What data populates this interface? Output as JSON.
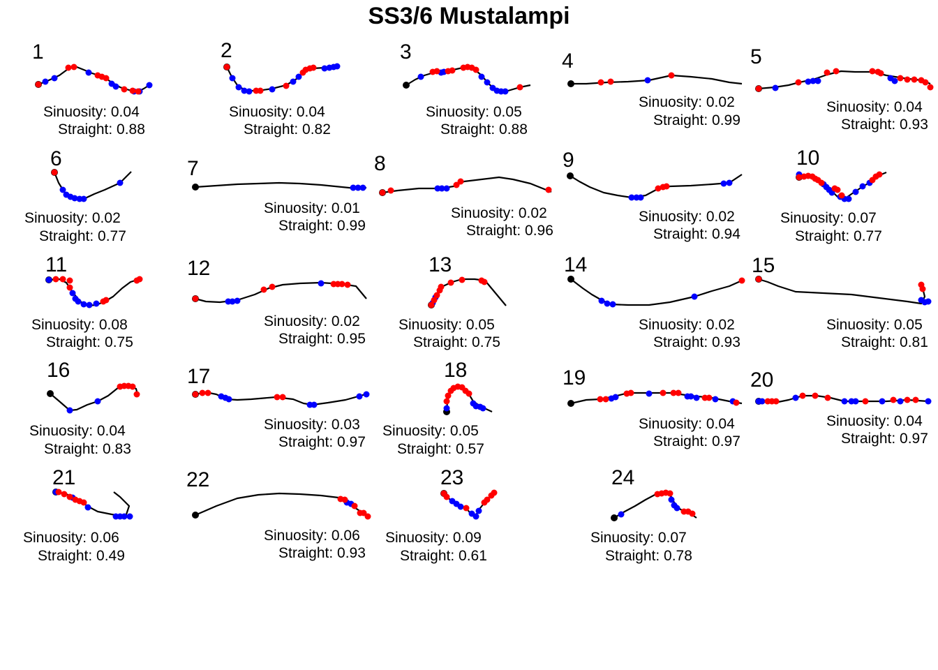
{
  "chart_data": {
    "type": "line",
    "title": "SS3/6 Mustalampi",
    "legend": "none",
    "colors": {
      "line": "#000000",
      "start": "#000000",
      "red_points": "#ff0000",
      "blue_points": "#0000ff"
    },
    "sinuosity_label": "Sinuosity:",
    "straight_label": "Straight:",
    "panels": [
      {
        "id": "1",
        "sinuosity": "0.04",
        "straightness": "0.88"
      },
      {
        "id": "2",
        "sinuosity": "0.04",
        "straightness": "0.82"
      },
      {
        "id": "3",
        "sinuosity": "0.05",
        "straightness": "0.88"
      },
      {
        "id": "4",
        "sinuosity": "0.02",
        "straightness": "0.99"
      },
      {
        "id": "5",
        "sinuosity": "0.04",
        "straightness": "0.93"
      },
      {
        "id": "6",
        "sinuosity": "0.02",
        "straightness": "0.77"
      },
      {
        "id": "7",
        "sinuosity": "0.01",
        "straightness": "0.99"
      },
      {
        "id": "8",
        "sinuosity": "0.02",
        "straightness": "0.96"
      },
      {
        "id": "9",
        "sinuosity": "0.02",
        "straightness": "0.94"
      },
      {
        "id": "10",
        "sinuosity": "0.07",
        "straightness": "0.77"
      },
      {
        "id": "11",
        "sinuosity": "0.08",
        "straightness": "0.75"
      },
      {
        "id": "12",
        "sinuosity": "0.02",
        "straightness": "0.95"
      },
      {
        "id": "13",
        "sinuosity": "0.05",
        "straightness": "0.75"
      },
      {
        "id": "14",
        "sinuosity": "0.02",
        "straightness": "0.93"
      },
      {
        "id": "15",
        "sinuosity": "0.05",
        "straightness": "0.81"
      },
      {
        "id": "16",
        "sinuosity": "0.04",
        "straightness": "0.83"
      },
      {
        "id": "17",
        "sinuosity": "0.03",
        "straightness": "0.97"
      },
      {
        "id": "18",
        "sinuosity": "0.05",
        "straightness": "0.57"
      },
      {
        "id": "19",
        "sinuosity": "0.04",
        "straightness": "0.97"
      },
      {
        "id": "20",
        "sinuosity": "0.04",
        "straightness": "0.97"
      },
      {
        "id": "21",
        "sinuosity": "0.06",
        "straightness": "0.49"
      },
      {
        "id": "22",
        "sinuosity": "0.06",
        "straightness": "0.93"
      },
      {
        "id": "23",
        "sinuosity": "0.09",
        "straightness": "0.61"
      },
      {
        "id": "24",
        "sinuosity": "0.07",
        "straightness": "0.78"
      }
    ]
  }
}
